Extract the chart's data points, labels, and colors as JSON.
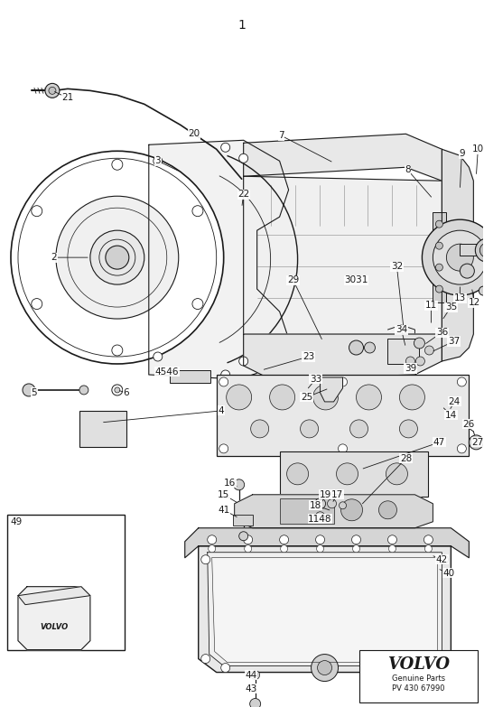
{
  "bg_color": "#ffffff",
  "fig_width": 5.36,
  "fig_height": 7.83,
  "dpi": 100,
  "volvo_text": "VOLVO",
  "genuine_parts": "Genuine Parts",
  "part_number": "PV 430 67990",
  "dark": "#1a1a1a",
  "gray": "#888888",
  "light_gray": "#cccccc",
  "title": "1"
}
